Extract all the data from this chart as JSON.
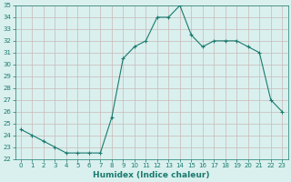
{
  "x": [
    0,
    1,
    2,
    3,
    4,
    5,
    6,
    7,
    8,
    9,
    10,
    11,
    12,
    13,
    14,
    15,
    16,
    17,
    18,
    19,
    20,
    21,
    22,
    23
  ],
  "y": [
    24.5,
    24.0,
    23.5,
    23.0,
    22.5,
    22.5,
    22.5,
    22.5,
    25.5,
    30.5,
    31.5,
    32.0,
    34.0,
    34.0,
    35.0,
    32.5,
    31.5,
    32.0,
    32.0,
    32.0,
    31.5,
    31.0,
    27.0,
    26.0
  ],
  "line_color": "#1a7a6e",
  "marker": "+",
  "marker_size": 3,
  "bg_color": "#d9f0ee",
  "grid_color": "#c8b8b8",
  "tick_color": "#1a7a6e",
  "xlabel": "Humidex (Indice chaleur)",
  "ylim": [
    22,
    35
  ],
  "xlim": [
    -0.5,
    23.5
  ],
  "yticks": [
    22,
    23,
    24,
    25,
    26,
    27,
    28,
    29,
    30,
    31,
    32,
    33,
    34,
    35
  ],
  "xticks": [
    0,
    1,
    2,
    3,
    4,
    5,
    6,
    7,
    8,
    9,
    10,
    11,
    12,
    13,
    14,
    15,
    16,
    17,
    18,
    19,
    20,
    21,
    22,
    23
  ],
  "label_fontsize": 5.5,
  "xlabel_fontsize": 6.5,
  "tick_labelsize": 5,
  "linewidth": 0.8,
  "markeredgewidth": 0.8
}
